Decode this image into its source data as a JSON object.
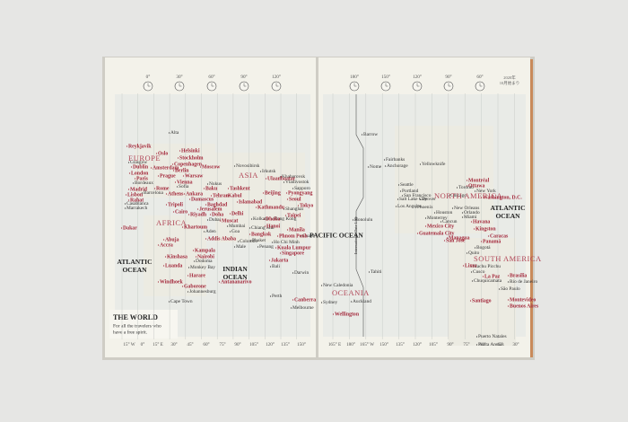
{
  "left_page": {
    "title": "THE WORLD",
    "tagline": [
      "For all the travelers who",
      "have a free spirit."
    ],
    "top_degrees": [
      "0°",
      "30°",
      "60°",
      "90°",
      "120°"
    ],
    "bottom_degrees": [
      "15° W",
      "0°",
      "15° E",
      "30°",
      "45°",
      "60°",
      "75°",
      "90°",
      "105°",
      "120°",
      "135°",
      "150°"
    ],
    "continents": [
      "EUROPE",
      "ASIA",
      "AFRICA"
    ],
    "oceans": [
      "ATLANTIC OCEAN",
      "INDIAN OCEAN"
    ],
    "capitals": [
      "Reykjavik",
      "Oslo",
      "Helsinki",
      "Stockholm",
      "Copenhagen",
      "Moscow",
      "Dublin",
      "Amsterdam",
      "Berlin",
      "London",
      "Warsaw",
      "Paris",
      "Prague",
      "Vienna",
      "Madrid",
      "Rome",
      "Lisbon",
      "Athens",
      "Ankara",
      "Rabat",
      "Baku",
      "Tehran",
      "Tashkent",
      "Kabul",
      "Islamabad",
      "Tripoli",
      "Damascus",
      "Baghdad",
      "Jerusalem",
      "Cairo",
      "Riyadh",
      "Doha",
      "Delhi",
      "Muscat",
      "Kathmandu",
      "Ulaanbaatar",
      "Beijing",
      "Pyongyang",
      "Seoul",
      "Tokyo",
      "Dhaka",
      "Taipei",
      "Hanoi",
      "Manila",
      "Dakar",
      "Khartoum",
      "Addis Ababa",
      "Bangkok",
      "Phnom Penh",
      "Abuja",
      "Accra",
      "Kuala Lumpur",
      "Singapore",
      "Jakarta",
      "Kinshasa",
      "Kampala",
      "Nairobi",
      "Luanda",
      "Harare",
      "Antananarivo",
      "Windhoek",
      "Gaborone",
      "Canberra"
    ],
    "cities": [
      "Alta",
      "Glasgow",
      "Bordeaux",
      "Barcelona",
      "Casablanca",
      "Marrakech",
      "Novosibirsk",
      "Irkutsk",
      "Khabarovsk",
      "Vladivostok",
      "Sapporo",
      "Nukus",
      "Sofia",
      "Shanghai",
      "Hong Kong",
      "Kolkata",
      "Dubai",
      "Mumbai",
      "Goa",
      "Aden",
      "Chiang Mai",
      "Colombo",
      "Male",
      "Phuket",
      "Penang",
      "Ho Chi Minh",
      "Guam",
      "Bali",
      "Darwin",
      "Dodoma",
      "Monkey Bay",
      "Johannesburg",
      "Cape Town",
      "Perth",
      "Melbourne"
    ]
  },
  "right_page": {
    "header": [
      "2020年",
      "10月始まり"
    ],
    "date_line": "International Date Line",
    "top_degrees": [
      "180°",
      "150°",
      "120°",
      "90°",
      "60°"
    ],
    "bottom_degrees": [
      "165° E",
      "180°",
      "165° W",
      "150°",
      "135°",
      "120°",
      "105°",
      "90°",
      "75°",
      "60°",
      "45°",
      "30°"
    ],
    "continents": [
      "NORTH AMERICA",
      "SOUTH AMERICA",
      "OCEANIA"
    ],
    "oceans": [
      "PACIFIC OCEAN",
      "ATLANTIC OCEAN"
    ],
    "capitals": [
      "Montréal",
      "Ottawa",
      "Washington, D.C.",
      "Havana",
      "Mexico City",
      "Kingston",
      "Guatemala City",
      "Managua",
      "Caracas",
      "San José",
      "Panamá",
      "Lima",
      "Brasília",
      "La Paz",
      "Santiago",
      "Montevideo",
      "Buenos Aires",
      "Wellington"
    ],
    "cities": [
      "Barrow",
      "Nome",
      "Fairbanks",
      "Anchorage",
      "Yellowknife",
      "Toronto",
      "Seattle",
      "Portland",
      "New York",
      "Salt Lake City",
      "Denver",
      "Chicago",
      "San Francisco",
      "Los Angeles",
      "Phoenix",
      "New Orleans",
      "Houston",
      "Orlando",
      "Miami",
      "Honolulu",
      "Monterrey",
      "Cancun",
      "Bogotá",
      "Quito",
      "Machu Picchu",
      "Cusco",
      "Chuquicamata",
      "Rio de Janeiro",
      "São Paulo",
      "Tahiti",
      "New Caledonia",
      "Auckland",
      "Sydney",
      "Puerto Natales",
      "Punta Arenas"
    ]
  }
}
